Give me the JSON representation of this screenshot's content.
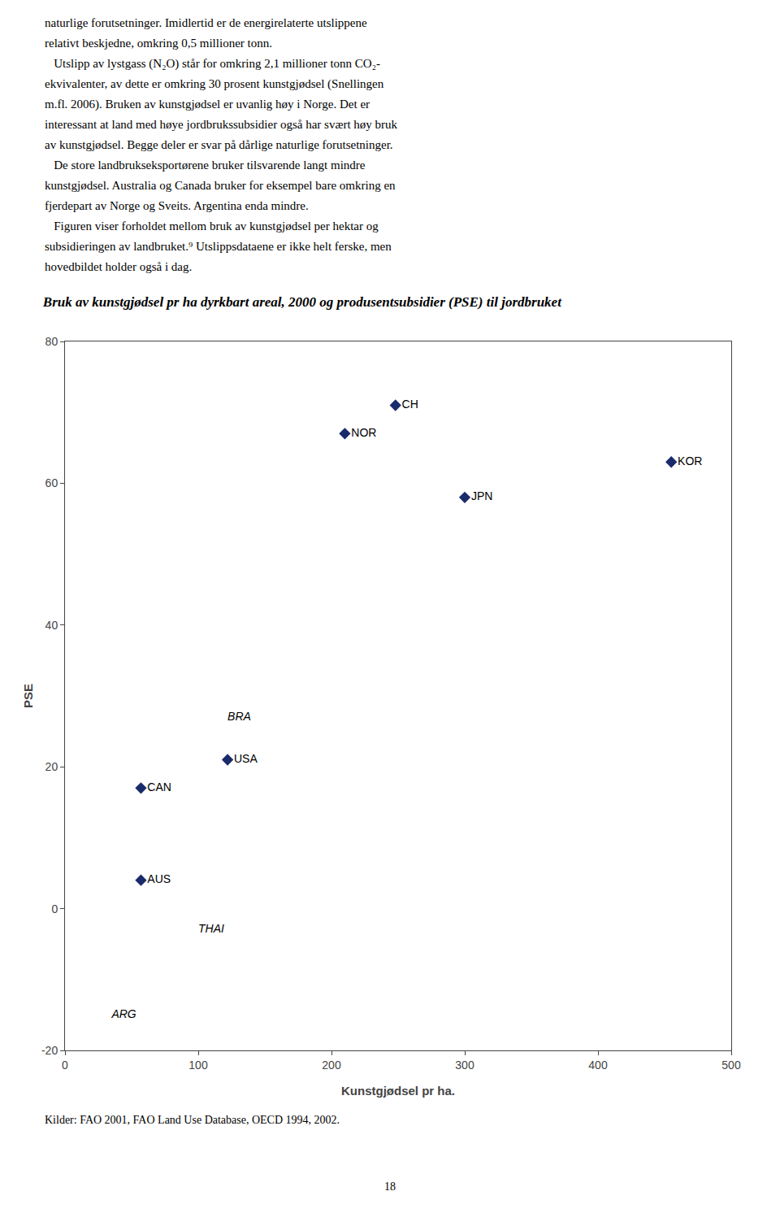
{
  "chart_data": {
    "type": "scatter",
    "title": "Bruk av kunstgjødsel pr ha dyrkbart areal, 2000 og produsentsubsidier (PSE) til jordbruket",
    "xlabel": "Kunstgjødsel pr ha.",
    "ylabel": "PSE",
    "xlim": [
      0,
      500
    ],
    "ylim": [
      -20,
      80
    ],
    "xticks": [
      0,
      100,
      200,
      300,
      400,
      500
    ],
    "yticks": [
      -20,
      0,
      20,
      40,
      60,
      80
    ],
    "grid": false,
    "series": [
      {
        "color": "#1a2b6b",
        "marker": "diamond",
        "x": [
          57,
          57,
          122,
          210,
          248,
          300,
          455
        ],
        "values": [
          4,
          17,
          21,
          67,
          71,
          58,
          63
        ],
        "labels": [
          "AUS",
          "CAN",
          "USA",
          "NOR",
          "CH",
          "JPN",
          "KOR"
        ]
      },
      {
        "marker": "none",
        "x": [
          35,
          100,
          122
        ],
        "values": [
          -15,
          -3,
          27
        ],
        "labels": [
          "ARG",
          "THAI",
          "BRA"
        ]
      }
    ],
    "annotations": [
      "naturlige forutsetninger. Imidlertid er de energirelaterte utslippene",
      "relativt beskjedne, omkring 0,5 millioner tonn.",
      "   Utslipp av lystgass (N₂O) står for omkring 2,1 millioner tonn CO₂-",
      "ekvivalenter, av dette er omkring 30 prosent kunstgjødsel (Snellingen",
      "m.fl. 2006). Bruken av kunstgjødsel er uvanlig høy i Norge. Det er",
      "interessant at land med høye jordbrukssubsidier også har svært høy bruk",
      "av kunstgjødsel. Begge deler er svar på dårlige naturlige forutsetninger.",
      "   De store landbrukseksportørene bruker tilsvarende langt mindre",
      "kunstgjødsel. Australia og Canada bruker for eksempel bare omkring en",
      "fjerdepart av Norge og Sveits. Argentina enda mindre.",
      "   Figuren viser forholdet mellom bruk av kunstgjødsel per hektar og",
      "subsidieringen av landbruket.⁹ Utslippsdataene er ikke helt ferske, men",
      "hovedbildet holder også i dag.",
      "Kilder: FAO 2001, FAO Land Use Database, OECD 1994, 2002.",
      "18"
    ]
  }
}
